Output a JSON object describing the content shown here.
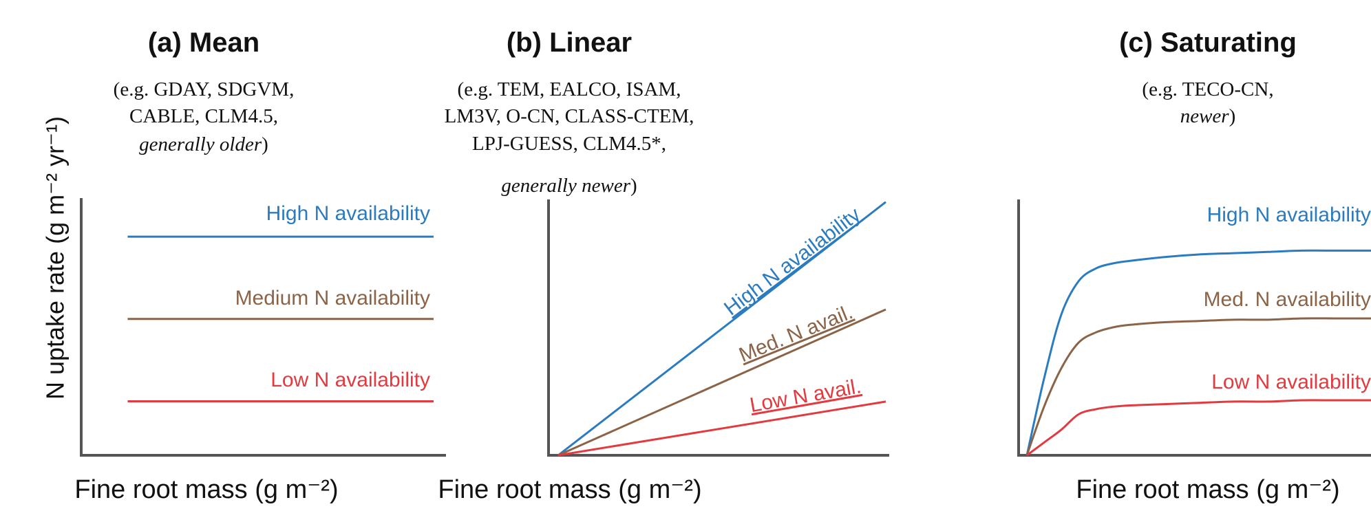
{
  "colors": {
    "high": "#2b7bbf",
    "medium": "#8b6447",
    "low": "#e23a3f",
    "axis": "#555555",
    "text": "#111111"
  },
  "y_axis_label": "N uptake rate (g m⁻² yr⁻¹)",
  "chart_data": [
    {
      "type": "line",
      "title": "(a) Mean",
      "subtitle_lines": [
        {
          "text": "(e.g. GDAY, SDGVM,",
          "italic": false
        },
        {
          "text": "CABLE, CLM4.5,",
          "italic": false
        },
        {
          "text": "generally older",
          "italic": true,
          "suffix": ")"
        }
      ],
      "xlabel": "Fine root mass (g m⁻²)",
      "ylabel": "N uptake rate (g m⁻² yr⁻¹)",
      "xlim": [
        0,
        1
      ],
      "ylim": [
        0,
        1
      ],
      "series": [
        {
          "name": "High N availability",
          "key": "high",
          "x": [
            0.07,
            1.0
          ],
          "y": [
            0.85,
            0.85
          ]
        },
        {
          "name": "Medium N availability",
          "key": "medium",
          "x": [
            0.07,
            1.0
          ],
          "y": [
            0.53,
            0.53
          ]
        },
        {
          "name": "Low N availability",
          "key": "low",
          "x": [
            0.07,
            1.0
          ],
          "y": [
            0.21,
            0.21
          ]
        }
      ]
    },
    {
      "type": "line",
      "title": "(b) Linear",
      "subtitle_lines": [
        {
          "text": "(e.g. TEM, EALCO, ISAM,",
          "italic": false
        },
        {
          "text": "LM3V, O-CN, CLASS-CTEM,",
          "italic": false
        },
        {
          "text": "LPJ-GUESS, CLM4.5*,",
          "italic": false
        },
        {
          "text": "generally newer",
          "italic": true,
          "suffix": ")"
        }
      ],
      "xlabel": "Fine root mass (g m⁻²)",
      "xlim": [
        0,
        1
      ],
      "ylim": [
        0,
        1
      ],
      "series": [
        {
          "name": "High N availability",
          "key": "high",
          "x": [
            0.0,
            1.0
          ],
          "y": [
            0.0,
            0.99
          ]
        },
        {
          "name": "Med. N avail.",
          "key": "medium",
          "x": [
            0.0,
            1.0
          ],
          "y": [
            0.0,
            0.57
          ]
        },
        {
          "name": "Low N avail.",
          "key": "low",
          "x": [
            0.0,
            1.0
          ],
          "y": [
            0.0,
            0.21
          ]
        }
      ]
    },
    {
      "type": "line",
      "title": "(c) Saturating",
      "subtitle_lines": [
        {
          "text": "(e.g. TECO-CN,",
          "italic": false
        },
        {
          "text": "newer",
          "italic": true,
          "suffix": ")"
        }
      ],
      "xlabel": "Fine root mass (g m⁻²)",
      "xlim": [
        0,
        1
      ],
      "ylim": [
        0,
        1
      ],
      "series": [
        {
          "name": "High N availability",
          "key": "high",
          "x": [
            0.0,
            0.05,
            0.1,
            0.15,
            0.2,
            0.25,
            0.3,
            0.4,
            0.5,
            0.6,
            0.7,
            0.8,
            0.9,
            1.0
          ],
          "y": [
            0.0,
            0.3,
            0.55,
            0.68,
            0.73,
            0.75,
            0.76,
            0.775,
            0.785,
            0.79,
            0.795,
            0.8,
            0.8,
            0.8
          ]
        },
        {
          "name": "Med. N availability",
          "key": "medium",
          "x": [
            0.0,
            0.05,
            0.1,
            0.15,
            0.2,
            0.25,
            0.3,
            0.4,
            0.5,
            0.6,
            0.7,
            0.8,
            0.9,
            1.0
          ],
          "y": [
            0.0,
            0.19,
            0.34,
            0.44,
            0.48,
            0.5,
            0.51,
            0.52,
            0.525,
            0.53,
            0.53,
            0.535,
            0.535,
            0.535
          ]
        },
        {
          "name": "Low N availability",
          "key": "low",
          "x": [
            0.0,
            0.05,
            0.1,
            0.15,
            0.2,
            0.25,
            0.3,
            0.4,
            0.5,
            0.6,
            0.7,
            0.8,
            0.9,
            1.0
          ],
          "y": [
            0.0,
            0.05,
            0.1,
            0.16,
            0.18,
            0.19,
            0.195,
            0.2,
            0.205,
            0.21,
            0.21,
            0.215,
            0.215,
            0.215
          ]
        }
      ]
    }
  ]
}
